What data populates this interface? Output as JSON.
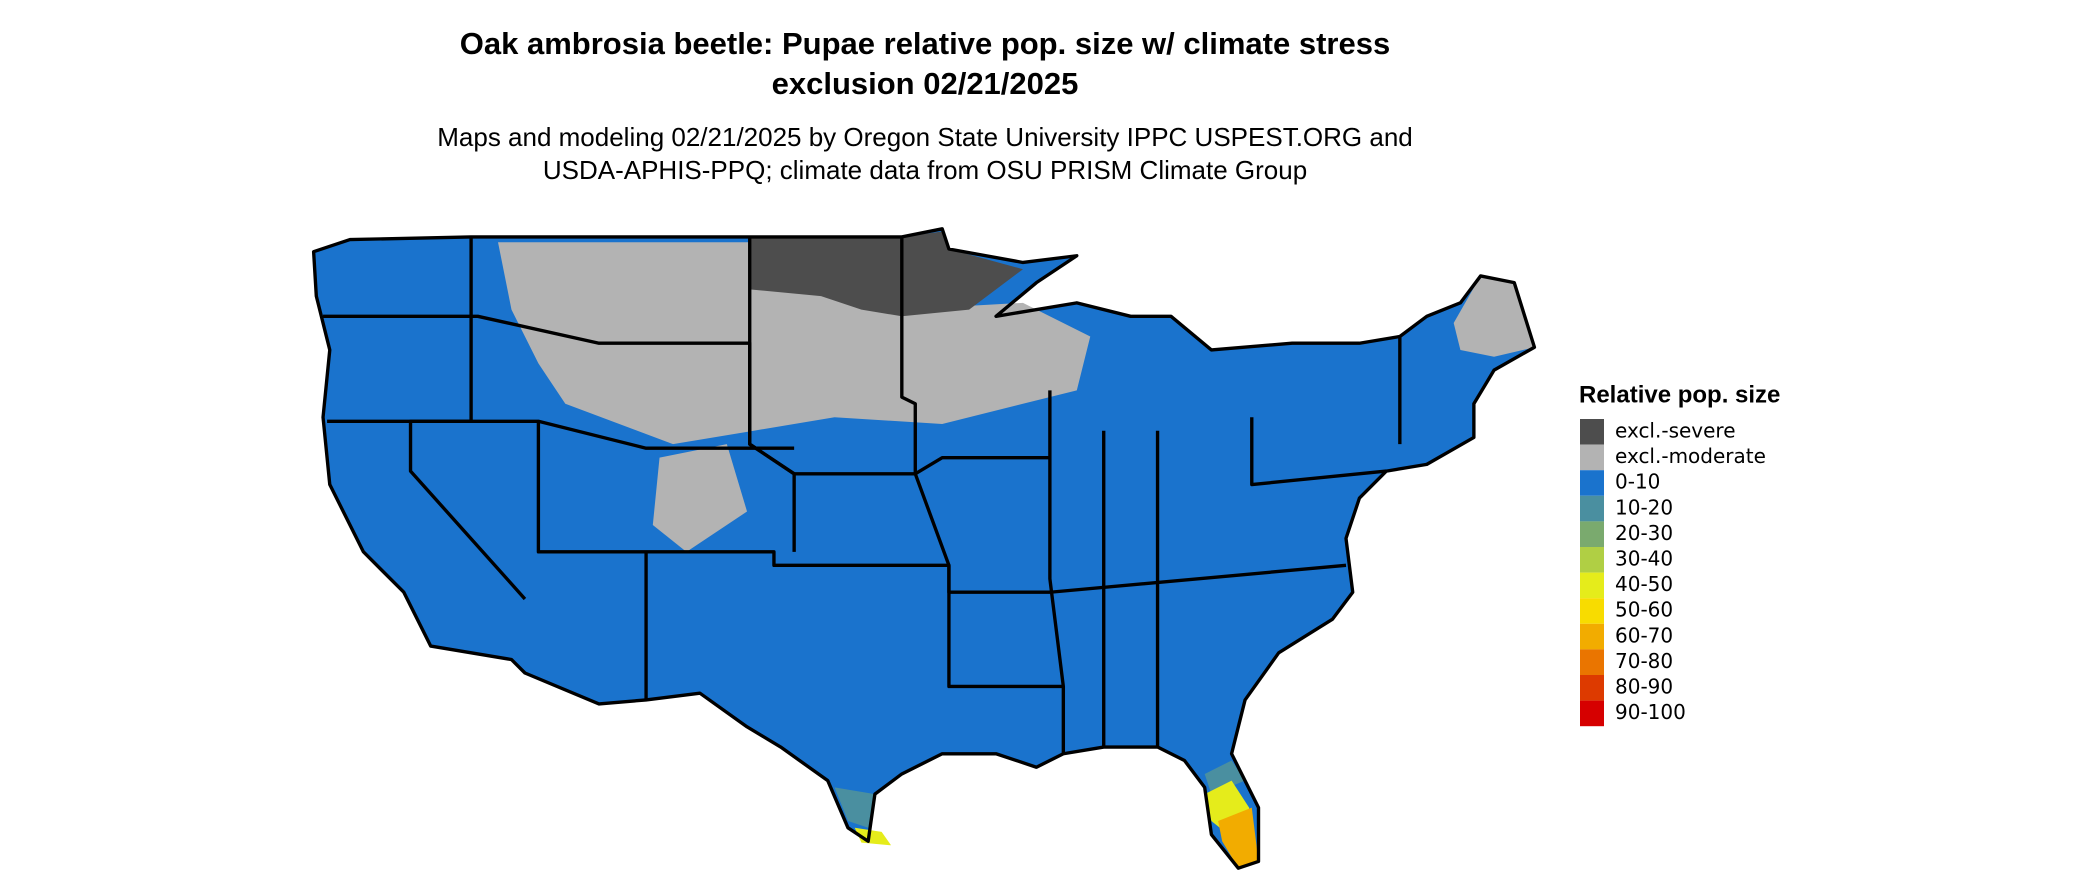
{
  "title": [
    "Oak ambrosia beetle: Pupae relative pop. size w/ climate stress",
    "exclusion 02/21/2025"
  ],
  "subtitle": [
    "Maps and modeling 02/21/2025 by Oregon State University IPPC USPEST.ORG and",
    "USDA-APHIS-PPQ; climate data from OSU PRISM Climate Group"
  ],
  "legend": {
    "title": "Relative pop. size",
    "items": [
      {
        "label": "excl.-severe",
        "color": "#4d4d4d"
      },
      {
        "label": "excl.-moderate",
        "color": "#b3b3b3"
      },
      {
        "label": "0-10",
        "color": "#1a73cd"
      },
      {
        "label": "10-20",
        "color": "#4a8fa0"
      },
      {
        "label": "20-30",
        "color": "#7aaa6e"
      },
      {
        "label": "30-40",
        "color": "#b0cf44"
      },
      {
        "label": "40-50",
        "color": "#e5ec1b"
      },
      {
        "label": "50-60",
        "color": "#f8dc00"
      },
      {
        "label": "60-70",
        "color": "#f2ac00"
      },
      {
        "label": "70-80",
        "color": "#ea7500"
      },
      {
        "label": "80-90",
        "color": "#dd3a00"
      },
      {
        "label": "90-100",
        "color": "#d60000"
      }
    ]
  }
}
